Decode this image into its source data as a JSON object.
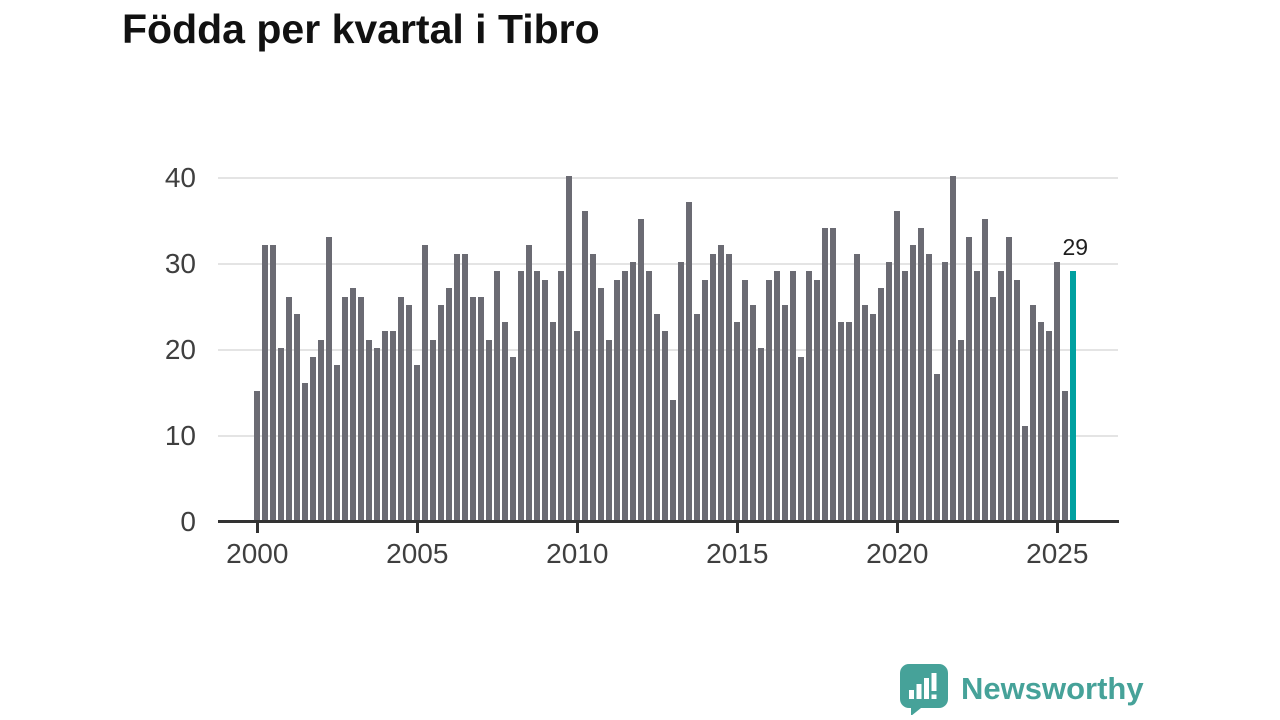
{
  "title": "Födda per kvartal i Tibro",
  "annotation": {
    "label": "29"
  },
  "logo": {
    "text": "Newsworthy",
    "color": "#46a299",
    "icon": "newsworthy-speech-bubble-chart-icon"
  },
  "chart_data": {
    "type": "bar",
    "title": "Födda per kvartal i Tibro",
    "x_start": "2000Q1",
    "x_end": "2025Q3",
    "x_tick_labels": [
      "2000",
      "2005",
      "2010",
      "2015",
      "2020",
      "2025"
    ],
    "y_tick_labels": [
      "0",
      "10",
      "20",
      "30",
      "40"
    ],
    "ylim": [
      0,
      40
    ],
    "grid": "horizontal",
    "legend": "none",
    "categories_note": "103 consecutive quarters, 4 per year starting 2000Q1",
    "series": [
      {
        "name": "Födda per kvartal",
        "values": [
          15,
          32,
          32,
          20,
          26,
          24,
          16,
          19,
          21,
          33,
          18,
          26,
          27,
          26,
          21,
          20,
          22,
          22,
          26,
          25,
          18,
          32,
          21,
          25,
          27,
          31,
          31,
          26,
          26,
          21,
          29,
          23,
          19,
          29,
          32,
          29,
          28,
          23,
          29,
          40,
          22,
          36,
          31,
          27,
          21,
          28,
          29,
          30,
          35,
          29,
          24,
          22,
          14,
          30,
          37,
          24,
          28,
          31,
          32,
          31,
          23,
          28,
          25,
          20,
          28,
          29,
          25,
          29,
          19,
          29,
          28,
          34,
          34,
          23,
          23,
          31,
          25,
          24,
          27,
          30,
          36,
          29,
          32,
          34,
          31,
          17,
          30,
          40,
          21,
          33,
          29,
          35,
          26,
          29,
          33,
          28,
          11,
          25,
          23,
          22,
          30,
          15,
          29
        ]
      }
    ],
    "highlight": {
      "index": 102,
      "quarter": "2025Q3",
      "value": 29,
      "label": "29"
    },
    "colors": {
      "bar": "#6b6b73",
      "highlight": "#00a0a0",
      "gridline": "#e4e4e4",
      "axis": "#333333",
      "tick_text": "#3f3f3f"
    }
  }
}
